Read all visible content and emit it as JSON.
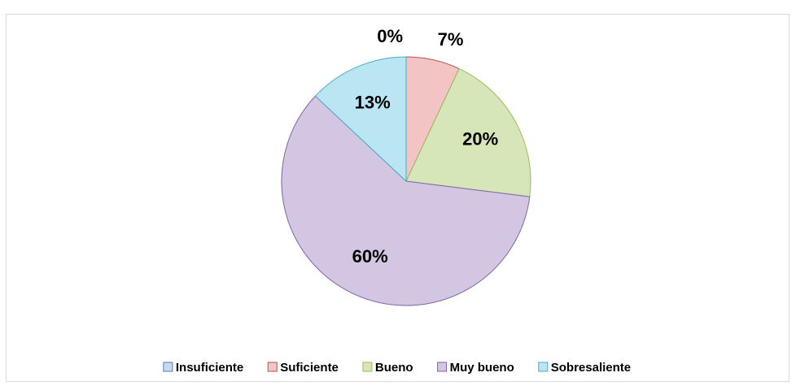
{
  "chart_data": {
    "type": "pie",
    "categories": [
      "Insuficiente",
      "Suficiente",
      "Bueno",
      "Muy bueno",
      "Sobresaliente"
    ],
    "values": [
      0,
      7,
      20,
      60,
      13
    ],
    "value_labels": [
      "0%",
      "7%",
      "20%",
      "60%",
      "13%"
    ],
    "colors": [
      "#c6d9f1",
      "#f2c4c3",
      "#d7e6b8",
      "#d3c6e3",
      "#b9e6f2"
    ],
    "edge_colors": [
      "#4f81bd",
      "#c0504d",
      "#9bbb59",
      "#8064a2",
      "#4bacc6"
    ],
    "legend": "bottom"
  }
}
